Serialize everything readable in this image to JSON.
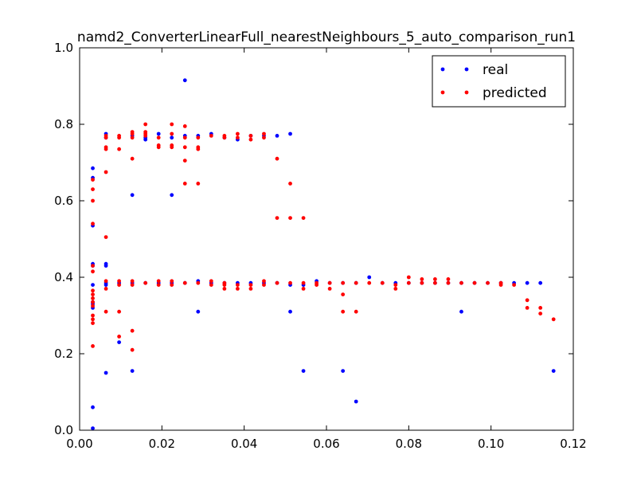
{
  "chart_data": {
    "type": "scatter",
    "title": "namd2_ConverterLinearFull_nearestNeighbours_5_auto_comparison_run1",
    "xlabel": "",
    "ylabel": "",
    "xlim": [
      0.0,
      0.12
    ],
    "ylim": [
      0.0,
      1.0
    ],
    "x_ticks": [
      "0.00",
      "0.02",
      "0.04",
      "0.06",
      "0.08",
      "0.10",
      "0.12"
    ],
    "y_ticks": [
      "0.0",
      "0.2",
      "0.4",
      "0.6",
      "0.8",
      "1.0"
    ],
    "grid": false,
    "legend_position": "top-right",
    "series": [
      {
        "name": "real",
        "color": "#0000ff",
        "points": [
          [
            0.0032,
            0.005
          ],
          [
            0.0032,
            0.06
          ],
          [
            0.0032,
            0.32
          ],
          [
            0.0032,
            0.33
          ],
          [
            0.0032,
            0.335
          ],
          [
            0.0032,
            0.38
          ],
          [
            0.0032,
            0.43
          ],
          [
            0.0032,
            0.435
          ],
          [
            0.0032,
            0.535
          ],
          [
            0.0032,
            0.66
          ],
          [
            0.0032,
            0.685
          ],
          [
            0.0064,
            0.15
          ],
          [
            0.0064,
            0.38
          ],
          [
            0.0064,
            0.385
          ],
          [
            0.0064,
            0.43
          ],
          [
            0.0064,
            0.435
          ],
          [
            0.0064,
            0.765
          ],
          [
            0.0064,
            0.775
          ],
          [
            0.0096,
            0.23
          ],
          [
            0.0096,
            0.385
          ],
          [
            0.0128,
            0.155
          ],
          [
            0.0128,
            0.385
          ],
          [
            0.0128,
            0.615
          ],
          [
            0.0128,
            0.77
          ],
          [
            0.016,
            0.385
          ],
          [
            0.016,
            0.76
          ],
          [
            0.016,
            0.765
          ],
          [
            0.0192,
            0.385
          ],
          [
            0.0192,
            0.775
          ],
          [
            0.0224,
            0.385
          ],
          [
            0.0224,
            0.615
          ],
          [
            0.0224,
            0.765
          ],
          [
            0.0256,
            0.385
          ],
          [
            0.0256,
            0.77
          ],
          [
            0.0256,
            0.915
          ],
          [
            0.0288,
            0.31
          ],
          [
            0.0288,
            0.39
          ],
          [
            0.0288,
            0.77
          ],
          [
            0.032,
            0.385
          ],
          [
            0.032,
            0.775
          ],
          [
            0.0352,
            0.385
          ],
          [
            0.0352,
            0.765
          ],
          [
            0.0384,
            0.385
          ],
          [
            0.0384,
            0.76
          ],
          [
            0.0416,
            0.385
          ],
          [
            0.0416,
            0.77
          ],
          [
            0.0448,
            0.385
          ],
          [
            0.0448,
            0.77
          ],
          [
            0.048,
            0.385
          ],
          [
            0.048,
            0.77
          ],
          [
            0.0512,
            0.31
          ],
          [
            0.0512,
            0.38
          ],
          [
            0.0512,
            0.775
          ],
          [
            0.0544,
            0.155
          ],
          [
            0.0544,
            0.38
          ],
          [
            0.0576,
            0.39
          ],
          [
            0.0608,
            0.385
          ],
          [
            0.064,
            0.155
          ],
          [
            0.064,
            0.385
          ],
          [
            0.0672,
            0.075
          ],
          [
            0.0672,
            0.385
          ],
          [
            0.0704,
            0.4
          ],
          [
            0.0736,
            0.385
          ],
          [
            0.0768,
            0.385
          ],
          [
            0.08,
            0.385
          ],
          [
            0.0832,
            0.385
          ],
          [
            0.0864,
            0.385
          ],
          [
            0.0896,
            0.385
          ],
          [
            0.0928,
            0.31
          ],
          [
            0.0928,
            0.385
          ],
          [
            0.096,
            0.385
          ],
          [
            0.0992,
            0.385
          ],
          [
            0.1024,
            0.385
          ],
          [
            0.1056,
            0.385
          ],
          [
            0.1088,
            0.385
          ],
          [
            0.112,
            0.385
          ],
          [
            0.1152,
            0.155
          ]
        ]
      },
      {
        "name": "predicted",
        "color": "#ff0000",
        "points": [
          [
            0.0032,
            0.22
          ],
          [
            0.0032,
            0.28
          ],
          [
            0.0032,
            0.29
          ],
          [
            0.0032,
            0.3
          ],
          [
            0.0032,
            0.325
          ],
          [
            0.0032,
            0.335
          ],
          [
            0.0032,
            0.345
          ],
          [
            0.0032,
            0.355
          ],
          [
            0.0032,
            0.365
          ],
          [
            0.0032,
            0.415
          ],
          [
            0.0032,
            0.43
          ],
          [
            0.0032,
            0.54
          ],
          [
            0.0032,
            0.6
          ],
          [
            0.0032,
            0.63
          ],
          [
            0.0032,
            0.655
          ],
          [
            0.0064,
            0.31
          ],
          [
            0.0064,
            0.37
          ],
          [
            0.0064,
            0.39
          ],
          [
            0.0064,
            0.505
          ],
          [
            0.0064,
            0.675
          ],
          [
            0.0064,
            0.735
          ],
          [
            0.0064,
            0.74
          ],
          [
            0.0064,
            0.765
          ],
          [
            0.0064,
            0.77
          ],
          [
            0.0096,
            0.245
          ],
          [
            0.0096,
            0.31
          ],
          [
            0.0096,
            0.38
          ],
          [
            0.0096,
            0.39
          ],
          [
            0.0096,
            0.735
          ],
          [
            0.0096,
            0.765
          ],
          [
            0.0096,
            0.77
          ],
          [
            0.0128,
            0.21
          ],
          [
            0.0128,
            0.26
          ],
          [
            0.0128,
            0.38
          ],
          [
            0.0128,
            0.39
          ],
          [
            0.0128,
            0.71
          ],
          [
            0.0128,
            0.765
          ],
          [
            0.0128,
            0.775
          ],
          [
            0.0128,
            0.78
          ],
          [
            0.016,
            0.385
          ],
          [
            0.016,
            0.77
          ],
          [
            0.016,
            0.775
          ],
          [
            0.016,
            0.78
          ],
          [
            0.016,
            0.8
          ],
          [
            0.0192,
            0.38
          ],
          [
            0.0192,
            0.39
          ],
          [
            0.0192,
            0.74
          ],
          [
            0.0192,
            0.745
          ],
          [
            0.0192,
            0.765
          ],
          [
            0.0224,
            0.38
          ],
          [
            0.0224,
            0.39
          ],
          [
            0.0224,
            0.74
          ],
          [
            0.0224,
            0.745
          ],
          [
            0.0224,
            0.775
          ],
          [
            0.0224,
            0.8
          ],
          [
            0.0256,
            0.385
          ],
          [
            0.0256,
            0.645
          ],
          [
            0.0256,
            0.705
          ],
          [
            0.0256,
            0.74
          ],
          [
            0.0256,
            0.765
          ],
          [
            0.0256,
            0.795
          ],
          [
            0.0288,
            0.385
          ],
          [
            0.0288,
            0.645
          ],
          [
            0.0288,
            0.735
          ],
          [
            0.0288,
            0.74
          ],
          [
            0.0288,
            0.765
          ],
          [
            0.032,
            0.38
          ],
          [
            0.032,
            0.39
          ],
          [
            0.032,
            0.77
          ],
          [
            0.0352,
            0.37
          ],
          [
            0.0352,
            0.38
          ],
          [
            0.0352,
            0.385
          ],
          [
            0.0352,
            0.765
          ],
          [
            0.0352,
            0.77
          ],
          [
            0.0384,
            0.37
          ],
          [
            0.0384,
            0.38
          ],
          [
            0.0384,
            0.765
          ],
          [
            0.0384,
            0.775
          ],
          [
            0.0416,
            0.37
          ],
          [
            0.0416,
            0.38
          ],
          [
            0.0416,
            0.76
          ],
          [
            0.0416,
            0.77
          ],
          [
            0.0448,
            0.38
          ],
          [
            0.0448,
            0.39
          ],
          [
            0.0448,
            0.765
          ],
          [
            0.0448,
            0.775
          ],
          [
            0.048,
            0.385
          ],
          [
            0.048,
            0.555
          ],
          [
            0.048,
            0.71
          ],
          [
            0.0512,
            0.385
          ],
          [
            0.0512,
            0.555
          ],
          [
            0.0512,
            0.645
          ],
          [
            0.0544,
            0.37
          ],
          [
            0.0544,
            0.385
          ],
          [
            0.0544,
            0.555
          ],
          [
            0.0576,
            0.38
          ],
          [
            0.0576,
            0.385
          ],
          [
            0.0608,
            0.37
          ],
          [
            0.0608,
            0.385
          ],
          [
            0.064,
            0.31
          ],
          [
            0.064,
            0.355
          ],
          [
            0.064,
            0.385
          ],
          [
            0.0672,
            0.31
          ],
          [
            0.0672,
            0.385
          ],
          [
            0.0704,
            0.385
          ],
          [
            0.0736,
            0.385
          ],
          [
            0.0768,
            0.37
          ],
          [
            0.0768,
            0.38
          ],
          [
            0.08,
            0.385
          ],
          [
            0.08,
            0.4
          ],
          [
            0.0832,
            0.385
          ],
          [
            0.0832,
            0.395
          ],
          [
            0.0864,
            0.385
          ],
          [
            0.0864,
            0.395
          ],
          [
            0.0896,
            0.385
          ],
          [
            0.0896,
            0.395
          ],
          [
            0.0928,
            0.385
          ],
          [
            0.096,
            0.385
          ],
          [
            0.0992,
            0.385
          ],
          [
            0.1024,
            0.38
          ],
          [
            0.1024,
            0.385
          ],
          [
            0.1056,
            0.38
          ],
          [
            0.1088,
            0.32
          ],
          [
            0.1088,
            0.34
          ],
          [
            0.112,
            0.305
          ],
          [
            0.112,
            0.32
          ],
          [
            0.1152,
            0.29
          ]
        ]
      }
    ]
  }
}
